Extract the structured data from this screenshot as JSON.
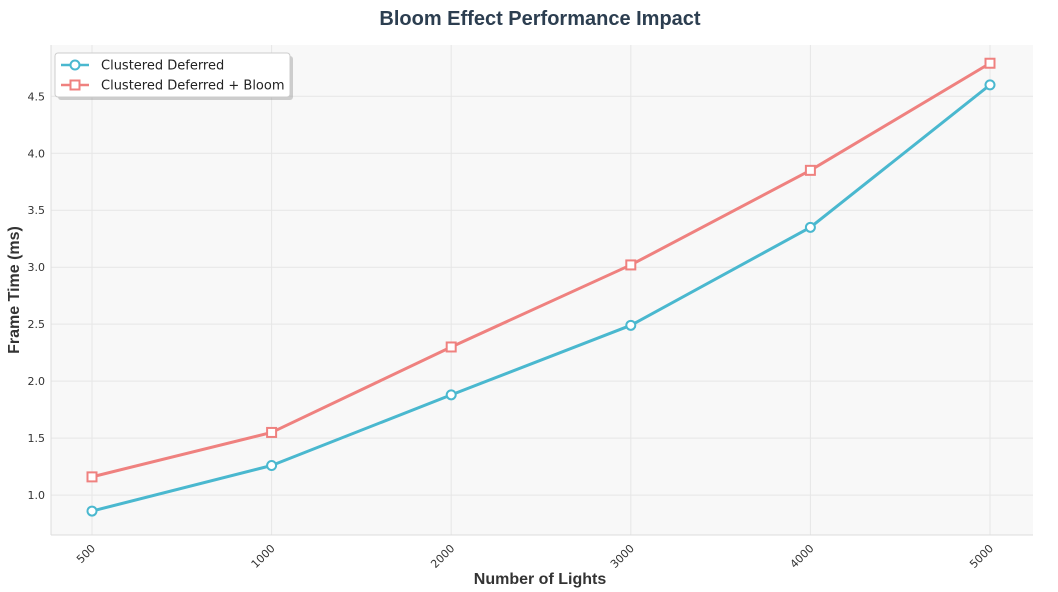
{
  "chart_data": {
    "type": "line",
    "title": "Bloom Effect Performance Impact",
    "xlabel": "Number of Lights",
    "ylabel": "Frame Time (ms)",
    "categories": [
      "500",
      "1000",
      "2000",
      "3000",
      "4000",
      "5000"
    ],
    "ylim": [
      0.65,
      4.95
    ],
    "yticks": [
      "1.0",
      "1.5",
      "2.0",
      "2.5",
      "3.0",
      "3.5",
      "4.0",
      "4.5"
    ],
    "grid": true,
    "legend_position": "top-left",
    "series": [
      {
        "name": "Clustered Deferred",
        "values": [
          0.86,
          1.26,
          1.88,
          2.49,
          3.35,
          4.6
        ],
        "color": "#4ab8cf",
        "marker": "circle"
      },
      {
        "name": "Clustered Deferred + Bloom",
        "values": [
          1.16,
          1.55,
          2.3,
          3.02,
          3.85,
          4.79
        ],
        "color": "#ef817f",
        "marker": "square"
      }
    ]
  }
}
